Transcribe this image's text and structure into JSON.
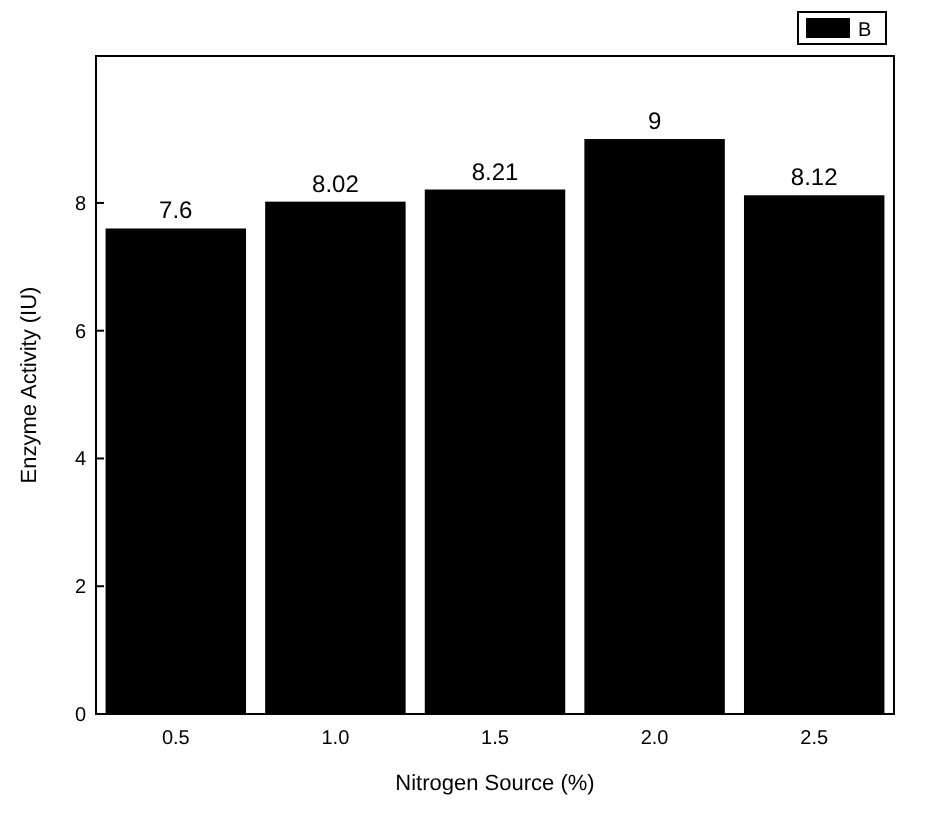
{
  "chart_data": {
    "type": "bar",
    "xlabel": "Nitrogen Source (%)",
    "ylabel": "Enzyme Activity (IU)",
    "categories": [
      "0.5",
      "1.0",
      "1.5",
      "2.0",
      "2.5"
    ],
    "series": [
      {
        "name": "B",
        "color": "#000000",
        "values": [
          7.6,
          8.02,
          8.21,
          9,
          8.12
        ]
      }
    ],
    "data_labels": true,
    "ylim": [
      0,
      10.3
    ],
    "yticks": [
      0,
      2,
      4,
      6,
      8
    ],
    "grid": false,
    "legend": "top right"
  }
}
